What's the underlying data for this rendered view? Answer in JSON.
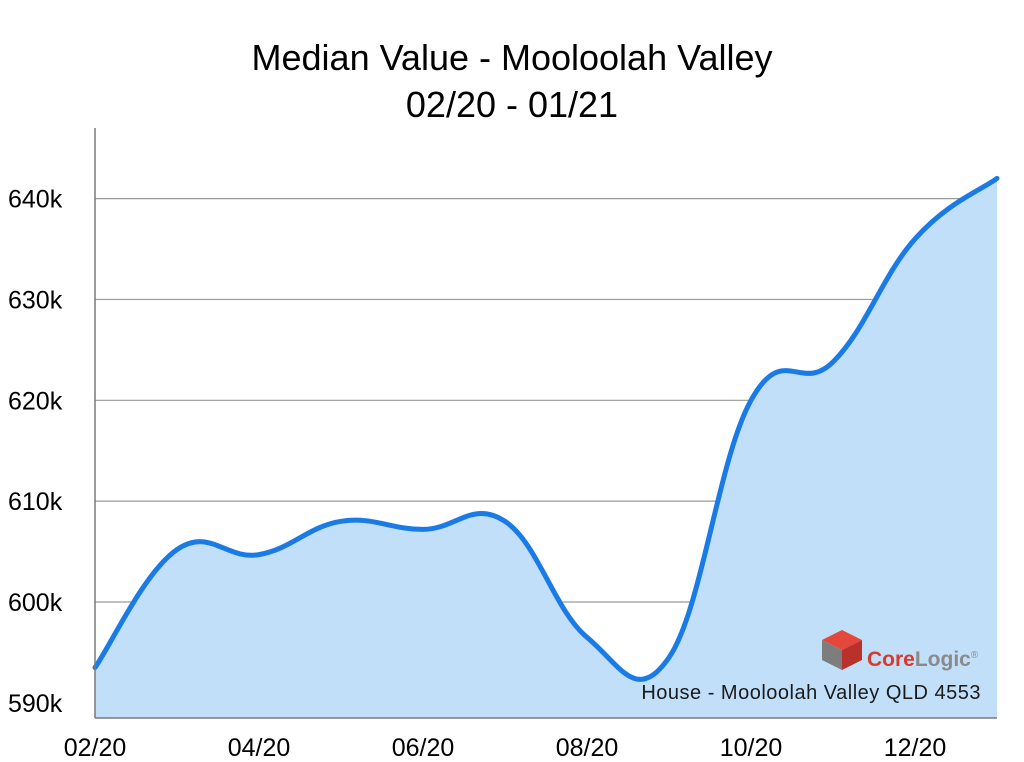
{
  "chart_data": {
    "type": "area",
    "title": "Median Value - Mooloolah Valley",
    "subtitle": "02/20 - 01/21",
    "x": [
      "02/20",
      "03/20",
      "04/20",
      "05/20",
      "06/20",
      "07/20",
      "08/20",
      "09/20",
      "10/20",
      "11/20",
      "12/20",
      "01/21"
    ],
    "x_tick_labels": [
      "02/20",
      "04/20",
      "06/20",
      "08/20",
      "10/20",
      "12/20"
    ],
    "series": [
      {
        "values": [
          593500,
          605200,
          604700,
          608000,
          607200,
          608000,
          596500,
          594500,
          620000,
          623800,
          636000,
          642000
        ]
      }
    ],
    "y_tick_labels": [
      "590k",
      "600k",
      "610k",
      "620k",
      "630k",
      "640k"
    ],
    "y_ticks": [
      590000,
      600000,
      610000,
      620000,
      630000,
      640000
    ],
    "ylim": [
      588500,
      647000
    ],
    "xlabel": "",
    "ylabel": "",
    "grid": "horizontal",
    "annotation": "House - Mooloolah Valley QLD 4553",
    "brand": {
      "prefix": "Core",
      "suffix": "Logic",
      "tm": "®"
    },
    "colors": {
      "line": "#1a7ae6",
      "fill": "#c2dffa",
      "grid": "#9a9a9a",
      "axis": "#7a7a7a",
      "brand_red": "#d83a2e",
      "brand_gray": "#8a8a8a",
      "logo_red": "#e5473b",
      "logo_red_dark": "#b8312a",
      "logo_gray": "#7d7d7d"
    }
  }
}
